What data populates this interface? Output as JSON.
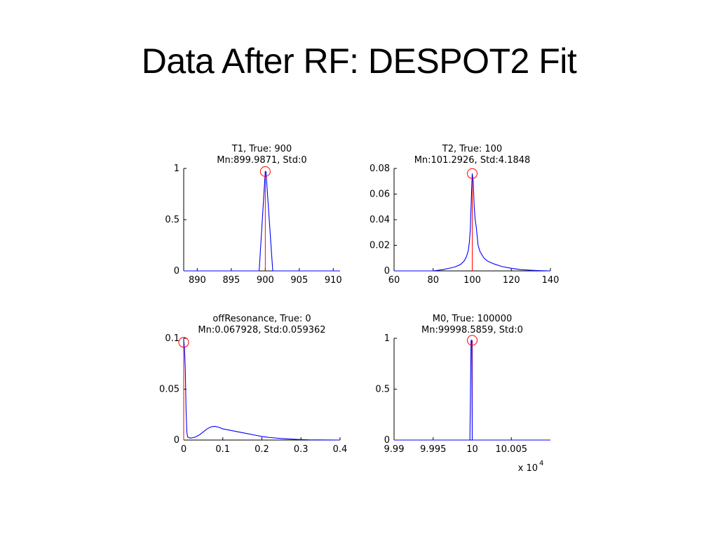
{
  "slide": {
    "title": "Data After RF: DESPOT2 Fit"
  },
  "chart_data": [
    {
      "type": "line",
      "title": "T1, True: 900",
      "subtitle": "Mn:899.9871, Std:0",
      "xlim": [
        888,
        911
      ],
      "ylim": [
        0,
        1
      ],
      "xticks": [
        890,
        895,
        900,
        905,
        910
      ],
      "xtick_labels": [
        "890",
        "895",
        "900",
        "905",
        "910"
      ],
      "yticks": [
        0,
        0.5,
        1
      ],
      "ytick_labels": [
        "0",
        "0.5",
        "1"
      ],
      "true_value": 900,
      "marker_y": 0.97,
      "series": [
        {
          "color": "#0000ff",
          "x": [
            888,
            899.1,
            900,
            900.1,
            901.1,
            911
          ],
          "y": [
            0,
            0,
            0.97,
            0.97,
            0,
            0
          ]
        }
      ],
      "refline_color": "#ff0000",
      "xscale_label": ""
    },
    {
      "type": "line",
      "title": "T2, True: 100",
      "subtitle": "Mn:101.2926, Std:4.1848",
      "xlim": [
        60,
        140
      ],
      "ylim": [
        0,
        0.08
      ],
      "xticks": [
        60,
        80,
        100,
        120,
        140
      ],
      "xtick_labels": [
        "60",
        "80",
        "100",
        "120",
        "140"
      ],
      "yticks": [
        0,
        0.02,
        0.04,
        0.06,
        0.08
      ],
      "ytick_labels": [
        "0",
        "0.02",
        "0.04",
        "0.06",
        "0.08"
      ],
      "true_value": 100,
      "marker_y": 0.076,
      "series": [
        {
          "color": "#0000ff",
          "x": [
            60,
            80,
            85,
            88,
            91,
            94,
            96,
            97,
            98,
            98.5,
            99,
            99.5,
            100,
            100.5,
            101,
            101.5,
            102,
            103,
            104,
            106,
            108,
            111,
            115,
            120,
            125,
            130,
            135,
            140
          ],
          "y": [
            0,
            0,
            0.001,
            0.002,
            0.003,
            0.005,
            0.008,
            0.011,
            0.016,
            0.022,
            0.032,
            0.055,
            0.076,
            0.07,
            0.05,
            0.04,
            0.035,
            0.02,
            0.015,
            0.01,
            0.0075,
            0.0055,
            0.0035,
            0.002,
            0.001,
            0.0005,
            0.0002,
            0
          ]
        }
      ],
      "refline_color": "#ff0000",
      "xscale_label": ""
    },
    {
      "type": "line",
      "title": "offResonance, True: 0",
      "subtitle": "Mn:0.067928, Std:0.059362",
      "xlim": [
        0,
        0.4
      ],
      "ylim": [
        0,
        0.1
      ],
      "xticks": [
        0,
        0.1,
        0.2,
        0.3,
        0.4
      ],
      "xtick_labels": [
        "0",
        "0.1",
        "0.2",
        "0.3",
        "0.4"
      ],
      "yticks": [
        0,
        0.05,
        0.1
      ],
      "ytick_labels": [
        "0",
        "0.05",
        "0.1"
      ],
      "true_value": 0,
      "marker_y": 0.096,
      "series": [
        {
          "color": "#0000ff",
          "x": [
            0,
            0.002,
            0.004,
            0.006,
            0.008,
            0.01,
            0.015,
            0.02,
            0.03,
            0.04,
            0.05,
            0.06,
            0.07,
            0.08,
            0.09,
            0.1,
            0.12,
            0.14,
            0.16,
            0.18,
            0.2,
            0.22,
            0.25,
            0.28,
            0.3,
            0.32,
            0.35,
            0.4
          ],
          "y": [
            0.098,
            0.09,
            0.07,
            0.03,
            0.008,
            0.003,
            0.002,
            0.002,
            0.003,
            0.005,
            0.008,
            0.011,
            0.013,
            0.0135,
            0.0125,
            0.011,
            0.0095,
            0.008,
            0.0065,
            0.005,
            0.0035,
            0.0025,
            0.0015,
            0.0008,
            0.0005,
            0.0002,
            0.0001,
            0
          ]
        }
      ],
      "refline_color": "#ff0000",
      "xscale_label": ""
    },
    {
      "type": "line",
      "title": "M0, True: 100000",
      "subtitle": "Mn:99998.5859, Std:0",
      "xlim": [
        9.99,
        10.01
      ],
      "ylim": [
        0,
        1
      ],
      "xticks": [
        9.99,
        9.995,
        10,
        10.005
      ],
      "xtick_labels": [
        "9.99",
        "9.995",
        "10",
        "10.005"
      ],
      "yticks": [
        0,
        0.5,
        1
      ],
      "ytick_labels": [
        "0",
        "0.5",
        "1"
      ],
      "true_value": 10,
      "marker_y": 0.98,
      "series": [
        {
          "color": "#0000ff",
          "x": [
            9.99,
            9.9997,
            9.99985,
            9.99995,
            10.0,
            10.01
          ],
          "y": [
            0,
            0,
            0.98,
            0.98,
            0,
            0
          ]
        }
      ],
      "refline_color": "#ff0000",
      "xscale_label": "x 10",
      "xscale_exponent": "4"
    }
  ]
}
